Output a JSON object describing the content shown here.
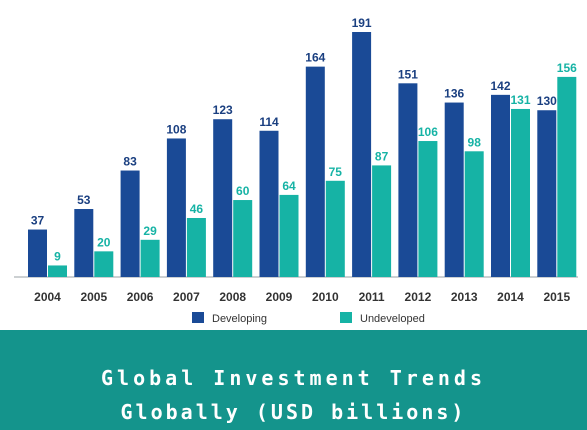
{
  "chart_data": {
    "type": "bar",
    "categories": [
      "2004",
      "2005",
      "2006",
      "2007",
      "2008",
      "2009",
      "2010",
      "2011",
      "2012",
      "2013",
      "2014",
      "2015"
    ],
    "series": [
      {
        "name": "Developing",
        "values": [
          37,
          53,
          83,
          108,
          123,
          114,
          164,
          191,
          151,
          136,
          142,
          130
        ],
        "color": "#1a4a96"
      },
      {
        "name": "Undeveloped",
        "values": [
          9,
          20,
          29,
          46,
          60,
          64,
          75,
          87,
          106,
          98,
          131,
          156
        ],
        "color": "#16b3a5"
      }
    ],
    "ylim": [
      0,
      200
    ],
    "grid": false,
    "legend": "bottom"
  },
  "banner": {
    "line1": "Global Investment Trends",
    "line2": "Globally (USD billions)",
    "color": "#14948c"
  }
}
